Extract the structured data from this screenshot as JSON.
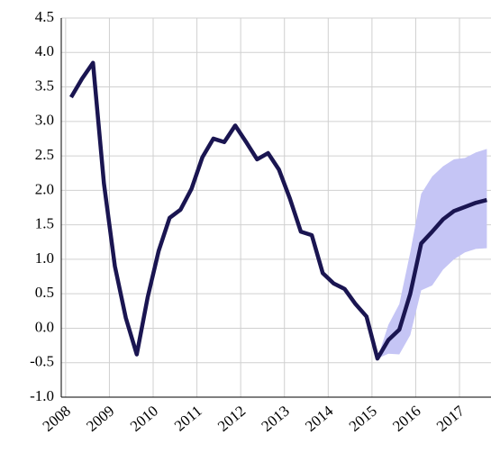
{
  "chart_data": {
    "type": "line",
    "x": [
      2008.125,
      2008.375,
      2008.625,
      2008.875,
      2009.125,
      2009.375,
      2009.625,
      2009.875,
      2010.125,
      2010.375,
      2010.625,
      2010.875,
      2011.125,
      2011.375,
      2011.625,
      2011.875,
      2012.125,
      2012.375,
      2012.625,
      2012.875,
      2013.125,
      2013.375,
      2013.625,
      2013.875,
      2014.125,
      2014.375,
      2014.625,
      2014.875,
      2015.125,
      2015.375,
      2015.625,
      2015.875,
      2016.125,
      2016.375,
      2016.625,
      2016.875,
      2017.125,
      2017.375,
      2017.625
    ],
    "series": [
      {
        "color": "#1a1551",
        "values": [
          3.35,
          3.62,
          3.85,
          2.1,
          0.9,
          0.15,
          -0.38,
          0.45,
          1.12,
          1.6,
          1.72,
          2.02,
          2.48,
          2.75,
          2.7,
          2.94,
          2.7,
          2.45,
          2.54,
          2.3,
          1.88,
          1.4,
          1.35,
          0.8,
          0.65,
          0.57,
          0.35,
          0.17,
          -0.44,
          -0.17,
          -0.02,
          0.5,
          1.23,
          1.4,
          1.58,
          1.7,
          1.76,
          1.82,
          1.86
        ]
      }
    ],
    "band": {
      "color": "#c5c5f5",
      "x": [
        2015.125,
        2015.375,
        2015.625,
        2015.875,
        2016.125,
        2016.375,
        2016.625,
        2016.875,
        2017.125,
        2017.375,
        2017.625
      ],
      "lower": [
        -0.44,
        -0.37,
        -0.38,
        -0.1,
        0.55,
        0.62,
        0.85,
        1.0,
        1.1,
        1.15,
        1.16
      ],
      "upper": [
        -0.44,
        0.05,
        0.35,
        1.1,
        1.95,
        2.2,
        2.35,
        2.45,
        2.47,
        2.55,
        2.6
      ]
    },
    "xlim": [
      2007.9,
      2017.72
    ],
    "xticks": [
      2008,
      2009,
      2010,
      2011,
      2012,
      2013,
      2014,
      2015,
      2016,
      2017
    ],
    "ylim": [
      -1,
      4.5
    ],
    "yticks": [
      {
        "value": -1,
        "label": "-1.0"
      },
      -0.5,
      {
        "value": 0,
        "label": "0.0"
      },
      0.5,
      {
        "value": 1,
        "label": "1.0"
      },
      1.5,
      {
        "value": 2,
        "label": "2.0"
      },
      2.5,
      {
        "value": 3,
        "label": "3.0"
      },
      3.5,
      {
        "value": 4,
        "label": "4.0"
      },
      4.5
    ],
    "grid": true
  }
}
